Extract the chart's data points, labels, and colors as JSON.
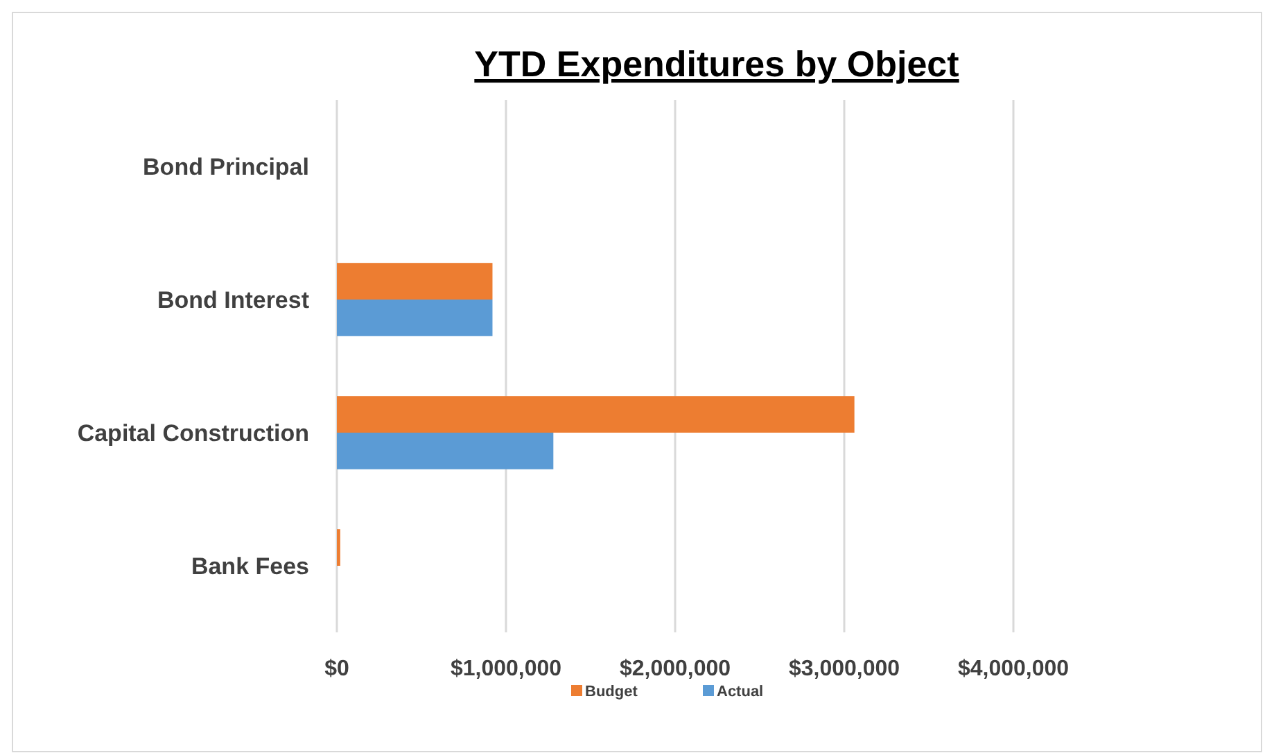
{
  "chart_data": {
    "type": "bar",
    "orientation": "horizontal",
    "title": "YTD Expenditures by Object",
    "categories": [
      "Bond Principal",
      "Bond Interest",
      "Capital Construction",
      "Bank Fees"
    ],
    "series": [
      {
        "name": "Budget",
        "color": "#ed7d31",
        "values": [
          0,
          920000,
          3060000,
          20000
        ]
      },
      {
        "name": "Actual",
        "color": "#5b9bd5",
        "values": [
          0,
          920000,
          1280000,
          0
        ]
      }
    ],
    "xlim": [
      0,
      4000000
    ],
    "xticks": [
      {
        "value": 0,
        "label": "$0"
      },
      {
        "value": 1000000,
        "label": "$1,000,000"
      },
      {
        "value": 2000000,
        "label": "$2,000,000"
      },
      {
        "value": 3000000,
        "label": "$3,000,000"
      },
      {
        "value": 4000000,
        "label": "$4,000,000"
      }
    ],
    "grid": "x",
    "legend": "bottom"
  }
}
